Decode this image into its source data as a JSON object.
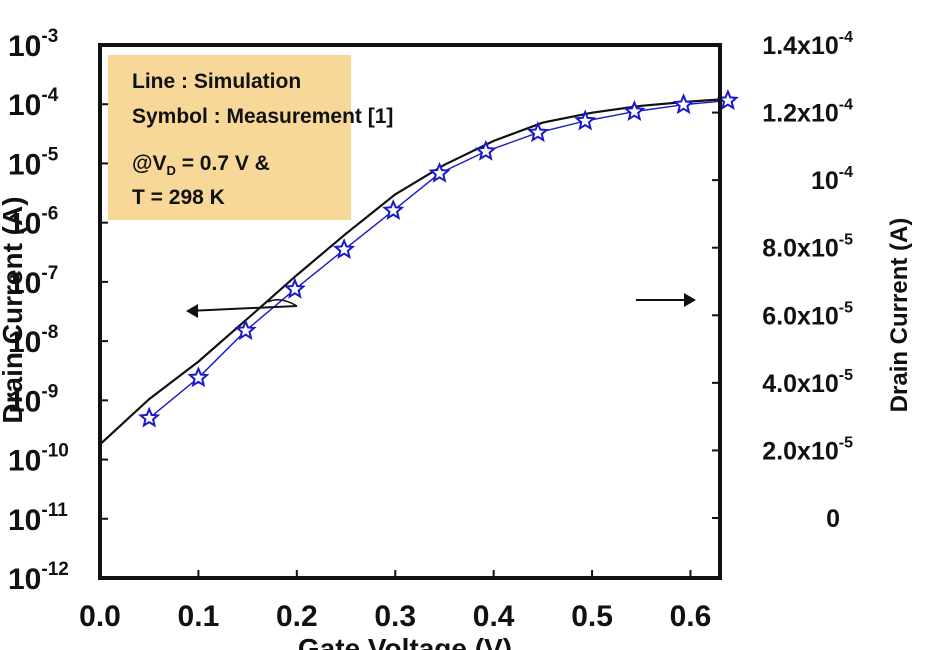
{
  "chart_data": {
    "type": "line",
    "xlabel": "Gate Voltage (V)",
    "ylabel_left": "Drain Current (A)",
    "ylabel_right": "Drain Current (A)",
    "xlim": [
      0.0,
      0.63
    ],
    "x_ticks": [
      "0.0",
      "0.1",
      "0.2",
      "0.3",
      "0.4",
      "0.5",
      "0.6"
    ],
    "y_left_scale": "log",
    "ylim_left": [
      1e-12,
      0.001
    ],
    "y_left_ticks": [
      {
        "base": "10",
        "exp": "-3"
      },
      {
        "base": "10",
        "exp": "-4"
      },
      {
        "base": "10",
        "exp": "-5"
      },
      {
        "base": "10",
        "exp": "-6"
      },
      {
        "base": "10",
        "exp": "-7"
      },
      {
        "base": "10",
        "exp": "-8"
      },
      {
        "base": "10",
        "exp": "-9"
      },
      {
        "base": "10",
        "exp": "-10"
      },
      {
        "base": "10",
        "exp": "-11"
      },
      {
        "base": "10",
        "exp": "-12"
      }
    ],
    "y_right_scale": "linear",
    "y_right_ticks": [
      {
        "base": "1.4x10",
        "exp": "-4"
      },
      {
        "base": "1.2x10",
        "exp": "-4"
      },
      {
        "base": "10",
        "exp": "-4"
      },
      {
        "base": "8.0x10",
        "exp": "-5"
      },
      {
        "base": "6.0x10",
        "exp": "-5"
      },
      {
        "base": "4.0x10",
        "exp": "-5"
      },
      {
        "base": "2.0x10",
        "exp": "-5"
      },
      {
        "base": "0",
        "exp": ""
      }
    ],
    "legend": {
      "line1": "Line : Simulation",
      "line2": "Symbol : Measurement [1]",
      "cond_prefix": "@V",
      "cond_sub": "D",
      "cond_suffix": " = 0.7 V &",
      "line4": "T = 298 K",
      "background": "#f8d898"
    },
    "series": [
      {
        "name": "Simulation",
        "style": "line",
        "color": "#111111",
        "x": [
          0.0,
          0.05,
          0.1,
          0.15,
          0.2,
          0.25,
          0.3,
          0.35,
          0.4,
          0.45,
          0.5,
          0.55,
          0.6,
          0.63
        ],
        "y": [
          1.8e-10,
          1.05e-09,
          4.5e-09,
          2.4e-08,
          1.3e-07,
          6.5e-07,
          3e-06,
          9.5e-06,
          2.4e-05,
          4.9e-05,
          7.2e-05,
          9.4e-05,
          0.000111,
          0.00012
        ]
      },
      {
        "name": "Measurement",
        "style": "star",
        "color": "#1a1ac8",
        "x": [
          0.05,
          0.1,
          0.148,
          0.198,
          0.248,
          0.298,
          0.345,
          0.392,
          0.445,
          0.493,
          0.543,
          0.593,
          0.638
        ],
        "y": [
          5e-10,
          2.4e-09,
          1.5e-08,
          7.5e-08,
          3.5e-07,
          1.6e-06,
          6.8e-06,
          1.6e-05,
          3.3e-05,
          5.2e-05,
          7.5e-05,
          9.8e-05,
          0.000115
        ]
      }
    ]
  }
}
